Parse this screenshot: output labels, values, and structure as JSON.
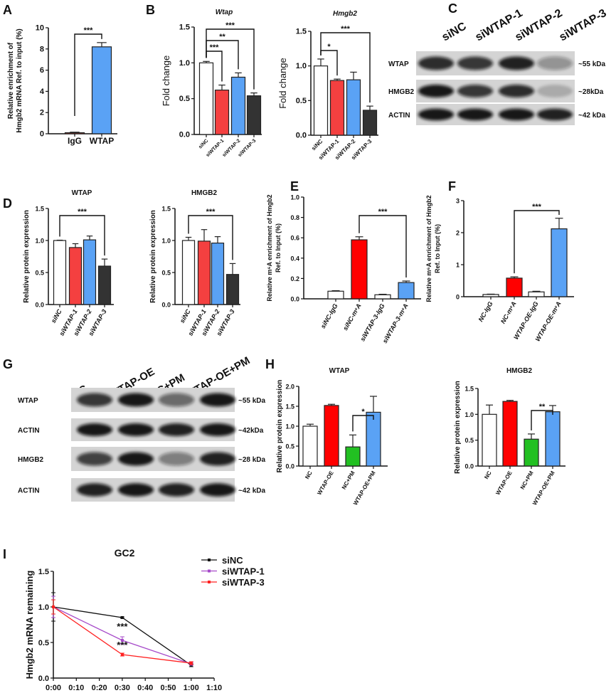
{
  "panel_letters": [
    "A",
    "B",
    "C",
    "D",
    "E",
    "F",
    "G",
    "H",
    "I"
  ],
  "chart_data": [
    {
      "type": "bar",
      "panel": "A",
      "title": "",
      "ylabel": [
        "Relative enrichment of",
        "Hmgb2 mRNA Ref. to input (%)"
      ],
      "categories": [
        "IgG",
        "WTAP"
      ],
      "values": [
        0.1,
        8.2
      ],
      "errors": [
        0.05,
        0.4
      ],
      "colors": [
        "#c0392b",
        "#5aa2f5"
      ],
      "ylim": [
        0,
        10
      ],
      "yticks": [
        "0",
        "2",
        "4",
        "6",
        "8",
        "10"
      ],
      "significance": [
        {
          "from": 0,
          "to": 1,
          "label": "***"
        }
      ]
    },
    {
      "type": "bar",
      "panel": "B",
      "title": "Wtap",
      "ylabel": [
        "Fold change"
      ],
      "categories": [
        "siNC",
        "siWTAP-1",
        "siWTAP-2",
        "siWTAP-3"
      ],
      "values": [
        1.0,
        0.62,
        0.8,
        0.54
      ],
      "errors": [
        0.02,
        0.07,
        0.06,
        0.04
      ],
      "colors": [
        "#ffffff",
        "#f44040",
        "#5aa2f5",
        "#333333"
      ],
      "ylim": [
        0,
        1.5
      ],
      "yticks": [
        "0.0",
        "0.5",
        "1.0",
        "1.5"
      ],
      "significance": [
        {
          "from": 0,
          "to": 1,
          "label": "***"
        },
        {
          "from": 0,
          "to": 2,
          "label": "**"
        },
        {
          "from": 0,
          "to": 3,
          "label": "***"
        }
      ]
    },
    {
      "type": "bar",
      "panel": "B",
      "title": "Hmgb2",
      "ylabel": [
        "Fold change"
      ],
      "categories": [
        "siNC",
        "siWTAP-1",
        "siWTAP-2",
        "siWTAP-3"
      ],
      "values": [
        1.0,
        0.79,
        0.8,
        0.36
      ],
      "errors": [
        0.1,
        0.02,
        0.11,
        0.06
      ],
      "colors": [
        "#ffffff",
        "#f44040",
        "#5aa2f5",
        "#333333"
      ],
      "ylim": [
        0,
        1.5
      ],
      "yticks": [
        "0.0",
        "0.5",
        "1.0",
        "1.5"
      ],
      "significance": [
        {
          "from": 0,
          "to": 1,
          "label": "*"
        },
        {
          "from": 0,
          "to": 3,
          "label": "***"
        }
      ]
    },
    {
      "type": "bar",
      "panel": "D",
      "title": "WTAP",
      "ylabel": [
        "Relative protein expression"
      ],
      "categories": [
        "siNC",
        "siWTAP-1",
        "siWTAP-2",
        "siWTAP-3"
      ],
      "values": [
        1.0,
        0.89,
        1.01,
        0.6
      ],
      "errors": [
        0.005,
        0.06,
        0.06,
        0.11
      ],
      "colors": [
        "#ffffff",
        "#f44040",
        "#5aa2f5",
        "#333333"
      ],
      "ylim": [
        0,
        1.5
      ],
      "yticks": [
        "0.0",
        "0.5",
        "1.0",
        "1.5"
      ],
      "significance": [
        {
          "from": 0,
          "to": 3,
          "label": "***"
        }
      ]
    },
    {
      "type": "bar",
      "panel": "D",
      "title": "HMGB2",
      "ylabel": [
        "Relative protein expression"
      ],
      "categories": [
        "siNC",
        "siWTAP-1",
        "siWTAP-2",
        "siWTAP-3"
      ],
      "values": [
        1.0,
        0.99,
        0.96,
        0.47
      ],
      "errors": [
        0.05,
        0.18,
        0.1,
        0.17
      ],
      "colors": [
        "#ffffff",
        "#f44040",
        "#5aa2f5",
        "#333333"
      ],
      "ylim": [
        0,
        1.5
      ],
      "yticks": [
        "0.0",
        "0.5",
        "1.0",
        "1.5"
      ],
      "significance": [
        {
          "from": 0,
          "to": 3,
          "label": "***"
        }
      ]
    },
    {
      "type": "bar",
      "panel": "E",
      "title": "",
      "ylabel": [
        "Relative m⁶A enrichment of Hmgb2",
        "Ref. to Input (%)"
      ],
      "categories": [
        "siNC-IgG",
        "siNC-m⁶A",
        "siWTAP-3-IgG",
        "siWTAP-3-m⁶A"
      ],
      "values": [
        0.075,
        0.58,
        0.04,
        0.16
      ],
      "errors": [
        0.005,
        0.03,
        0.005,
        0.015
      ],
      "colors": [
        "#ffffff",
        "#ff0000",
        "#ffffff",
        "#5aa2f5"
      ],
      "ylim": [
        0,
        1.0
      ],
      "yticks": [
        "0.0",
        "0.2",
        "0.4",
        "0.6",
        "0.8",
        "1.0"
      ],
      "significance": [
        {
          "from": 1,
          "to": 3,
          "label": "***"
        }
      ]
    },
    {
      "type": "bar",
      "panel": "F",
      "title": "",
      "ylabel": [
        "Relative m⁶A enrichment of Hmgb2",
        "Ref. to Input (%)"
      ],
      "categories": [
        "NC-IgG",
        "NC-m⁶A",
        "WTAP-OE-IgG",
        "WTAP-OE-m⁶A"
      ],
      "values": [
        0.07,
        0.58,
        0.15,
        2.12
      ],
      "errors": [
        0.01,
        0.04,
        0.02,
        0.33
      ],
      "colors": [
        "#ffffff",
        "#ff0000",
        "#ffffff",
        "#5aa2f5"
      ],
      "ylim": [
        0,
        3
      ],
      "yticks": [
        "0",
        "1",
        "2",
        "3"
      ],
      "significance": [
        {
          "from": 1,
          "to": 3,
          "label": "***"
        }
      ]
    },
    {
      "type": "bar",
      "panel": "H",
      "title": "WTAP",
      "ylabel": [
        "Relative protein expression"
      ],
      "categories": [
        "NC",
        "WTAP-OE",
        "NC+PM",
        "WTAP-OE+PM"
      ],
      "values": [
        1.0,
        1.52,
        0.48,
        1.35
      ],
      "errors": [
        0.05,
        0.03,
        0.3,
        0.4
      ],
      "colors": [
        "#ffffff",
        "#ff0000",
        "#22c022",
        "#5aa2f5"
      ],
      "ylim": [
        0,
        2.0
      ],
      "yticks": [
        "0.0",
        "0.5",
        "1.0",
        "1.5",
        "2.0"
      ],
      "significance": [
        {
          "from": 2,
          "to": 3,
          "label": "*"
        }
      ]
    },
    {
      "type": "bar",
      "panel": "H",
      "title": "HMGB2",
      "ylabel": [
        "Relative protein expression"
      ],
      "categories": [
        "NC",
        "WTAP-OE",
        "NC+PM",
        "WTAP-OE+PM"
      ],
      "values": [
        1.0,
        1.25,
        0.52,
        1.05
      ],
      "errors": [
        0.18,
        0.02,
        0.1,
        0.12
      ],
      "colors": [
        "#ffffff",
        "#ff0000",
        "#22c022",
        "#5aa2f5"
      ],
      "ylim": [
        0,
        1.5
      ],
      "yticks": [
        "0.0",
        "0.5",
        "1.0",
        "1.5"
      ],
      "significance": [
        {
          "from": 2,
          "to": 3,
          "label": "**"
        }
      ]
    },
    {
      "type": "line",
      "panel": "I",
      "title": "GC2",
      "ylabel": [
        "Hmgb2 mRNA remaining"
      ],
      "x": [
        "0:00",
        "0:30",
        "1:00"
      ],
      "xticks": [
        "0:00",
        "0:10",
        "0:20",
        "0:30",
        "0:40",
        "0:50",
        "1:00",
        "1:10"
      ],
      "ylim": [
        0,
        1.5
      ],
      "yticks": [
        "0.0",
        "0.5",
        "1.0",
        "1.5"
      ],
      "legend": "top-right",
      "series": [
        {
          "name": "siNC",
          "color": "#111111",
          "values": [
            1.0,
            0.85,
            0.18
          ],
          "errors": [
            0.2,
            0.01,
            0.02
          ]
        },
        {
          "name": "siWTAP-1",
          "color": "#a64ac9",
          "values": [
            1.0,
            0.53,
            0.2
          ],
          "errors": [
            0.15,
            0.05,
            0.02
          ]
        },
        {
          "name": "siWTAP-3",
          "color": "#ff2020",
          "values": [
            1.0,
            0.33,
            0.21
          ],
          "errors": [
            0.1,
            0.02,
            0.02
          ]
        }
      ],
      "annotations": [
        {
          "x": "0:30",
          "label": "***"
        },
        {
          "x": "0:30",
          "label": "***"
        }
      ]
    }
  ],
  "blots": {
    "C": {
      "lanes": [
        "siNC",
        "siWTAP-1",
        "siWTAP-2",
        "siWTAP-3"
      ],
      "rows": [
        {
          "protein": "WTAP",
          "size": "~55 kDa"
        },
        {
          "protein": "HMGB2",
          "size": "~28kDa"
        },
        {
          "protein": "ACTIN",
          "size": "~42 kDa"
        }
      ]
    },
    "G": {
      "lanes": [
        "NC",
        "WTAP-OE",
        "NC+PM",
        "WTAP-OE+PM"
      ],
      "rows": [
        {
          "protein": "WTAP",
          "size": "~55 kDa"
        },
        {
          "protein": "ACTIN",
          "size": "~42kDa"
        },
        {
          "protein": "HMGB2",
          "size": "~28 kDa"
        },
        {
          "protein": "ACTIN",
          "size": "~42 kDa"
        }
      ]
    }
  }
}
